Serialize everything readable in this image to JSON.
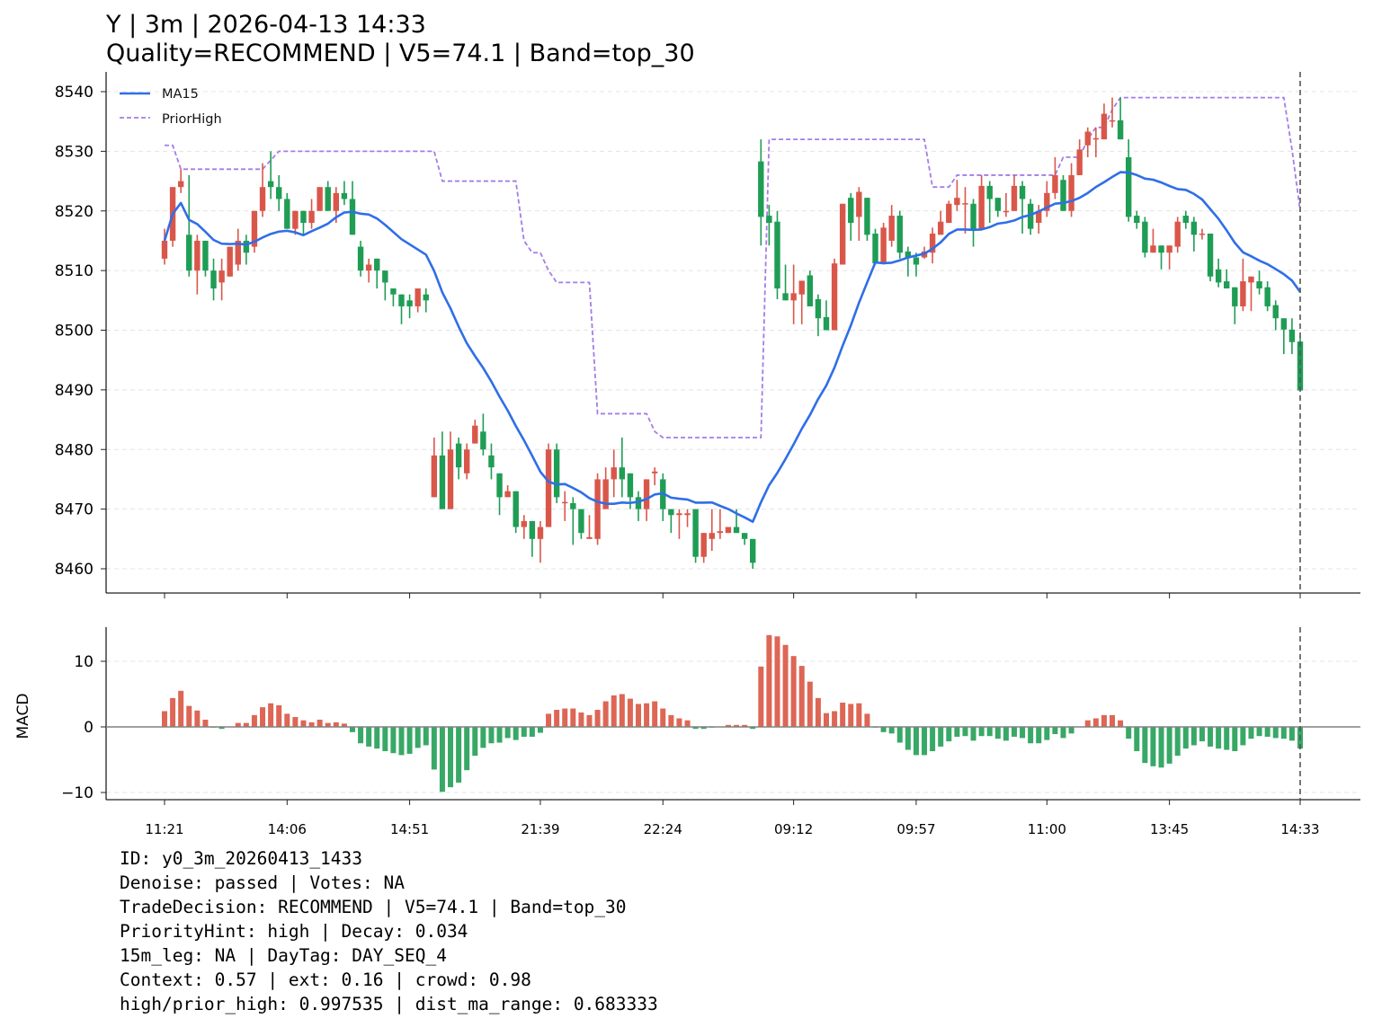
{
  "title": {
    "line1": "Y | 3m | 2026-04-13 14:33",
    "line2": "Quality=RECOMMEND | V5=74.1 | Band=top_30"
  },
  "info_lines": [
    "ID: y0_3m_20260413_1433",
    "Denoise: passed | Votes: NA",
    "TradeDecision: RECOMMEND | V5=74.1 | Band=top_30",
    "PriorityHint: high | Decay: 0.034",
    "15m_leg: NA | DayTag: DAY_SEQ_4",
    "Context: 0.57 | ext: 0.16 | crowd: 0.98",
    "high/prior_high: 0.997535 | dist_ma_range: 0.683333"
  ],
  "colors": {
    "up": "#d9574a",
    "down": "#1f9d55",
    "macd_up": "#dd6655",
    "macd_down": "#38a866",
    "ma": "#2f6ee8",
    "prior_high": "#a57ce8"
  },
  "chart_data": [
    {
      "type": "candlestick",
      "legend": [
        "MA15",
        "PriorHigh"
      ],
      "legend_position": "top-left",
      "ma_window": 15,
      "ylim": [
        8456,
        8544
      ],
      "yticks": [
        "8460",
        "8470",
        "8480",
        "8490",
        "8500",
        "8510",
        "8520",
        "8530",
        "8540"
      ],
      "xticks": [
        {
          "index": 0,
          "label": "11:21"
        },
        {
          "index": 15,
          "label": "14:06"
        },
        {
          "index": 30,
          "label": "14:51"
        },
        {
          "index": 46,
          "label": "21:39"
        },
        {
          "index": 61,
          "label": "22:24"
        },
        {
          "index": 77,
          "label": "09:12"
        },
        {
          "index": 92,
          "label": "09:57"
        },
        {
          "index": 108,
          "label": "11:00"
        },
        {
          "index": 123,
          "label": "13:45"
        },
        {
          "index": 139,
          "label": "14:33"
        }
      ],
      "marker_index": 139,
      "ohlc": [
        [
          8512,
          8517,
          8511,
          8515
        ],
        [
          8515,
          8524,
          8514,
          8524
        ],
        [
          8524,
          8527,
          8523,
          8525
        ],
        [
          8516,
          8526,
          8509,
          8510
        ],
        [
          8510,
          8516,
          8506,
          8515
        ],
        [
          8515,
          8515,
          8509,
          8510
        ],
        [
          8510,
          8512,
          8505,
          8507
        ],
        [
          8508,
          8512,
          8505,
          8510
        ],
        [
          8509,
          8514,
          8509,
          8514
        ],
        [
          8511,
          8517,
          8510,
          8515
        ],
        [
          8515,
          8516,
          8511,
          8513
        ],
        [
          8514,
          8520,
          8513,
          8520
        ],
        [
          8520,
          8528,
          8519,
          8524
        ],
        [
          8525,
          8530,
          8522,
          8524
        ],
        [
          8524,
          8526,
          8520,
          8522
        ],
        [
          8522,
          8523,
          8517,
          8517
        ],
        [
          8517,
          8520,
          8516,
          8520
        ],
        [
          8520,
          8520,
          8516,
          8518
        ],
        [
          8518,
          8522,
          8517,
          8520
        ],
        [
          8520,
          8524,
          8520,
          8524
        ],
        [
          8524,
          8525,
          8520,
          8520
        ],
        [
          8520,
          8524,
          8518,
          8523
        ],
        [
          8523,
          8525,
          8521,
          8522
        ],
        [
          8522,
          8525,
          8516,
          8516
        ],
        [
          8514,
          8515,
          8509,
          8510
        ],
        [
          8510,
          8512,
          8508,
          8511
        ],
        [
          8512,
          8512,
          8507,
          8510
        ],
        [
          8510,
          8510,
          8505,
          8508
        ],
        [
          8507,
          8507,
          8504,
          8506
        ],
        [
          8506,
          8506,
          8501,
          8504
        ],
        [
          8505,
          8506,
          8502,
          8504
        ],
        [
          8504,
          8507,
          8503,
          8507
        ],
        [
          8506,
          8507,
          8503,
          8505
        ],
        [
          8472,
          8482,
          8472,
          8479
        ],
        [
          8479,
          8483,
          8470,
          8470
        ],
        [
          8470,
          8483,
          8470,
          8480
        ],
        [
          8481,
          8482,
          8475,
          8477
        ],
        [
          8476,
          8481,
          8475,
          8480
        ],
        [
          8481,
          8485,
          8481,
          8484
        ],
        [
          8483,
          8486,
          8479,
          8480
        ],
        [
          8479,
          8481,
          8475,
          8477
        ],
        [
          8476,
          8476,
          8469,
          8472
        ],
        [
          8472,
          8474,
          8472,
          8473
        ],
        [
          8473,
          8473,
          8466,
          8467
        ],
        [
          8467,
          8469,
          8465,
          8468
        ],
        [
          8468,
          8468,
          8462,
          8465
        ],
        [
          8465,
          8468,
          8461,
          8467
        ],
        [
          8467,
          8481,
          8467,
          8480
        ],
        [
          8480,
          8481,
          8471,
          8472
        ],
        [
          8471,
          8473,
          8468,
          8471.2
        ],
        [
          8471,
          8472,
          8464,
          8470
        ],
        [
          8470,
          8470,
          8465,
          8466
        ],
        [
          8465,
          8469,
          8465,
          8465.3
        ],
        [
          8465,
          8476,
          8464,
          8475
        ],
        [
          8470,
          8477,
          8470,
          8475
        ],
        [
          8475,
          8480,
          8472,
          8477
        ],
        [
          8477,
          8482,
          8472,
          8475
        ],
        [
          8476,
          8476,
          8470,
          8472
        ],
        [
          8472,
          8473,
          8468,
          8470
        ],
        [
          8470,
          8475,
          8468,
          8475
        ],
        [
          8476,
          8477,
          8474,
          8476.3
        ],
        [
          8475,
          8476,
          8468,
          8470
        ],
        [
          8470,
          8470,
          8466,
          8469
        ],
        [
          8469,
          8470,
          8465,
          8469.3
        ],
        [
          8469,
          8470,
          8467,
          8469.3
        ],
        [
          8470,
          8470,
          8461,
          8462
        ],
        [
          8462,
          8466,
          8461,
          8466
        ],
        [
          8465,
          8470,
          8463,
          8466
        ],
        [
          8466,
          8470,
          8465,
          8466.3
        ],
        [
          8466,
          8467,
          8466,
          8467
        ],
        [
          8467,
          8470,
          8466,
          8466
        ],
        [
          8466,
          8466,
          8464,
          8465
        ],
        [
          8465,
          8465,
          8460,
          8461
        ],
        [
          8528.3,
          8532,
          8514.2,
          8519
        ],
        [
          8519.2,
          8521,
          8514.2,
          8518
        ],
        [
          8518.2,
          8520,
          8505.2,
          8507
        ],
        [
          8506.2,
          8511,
          8505,
          8505
        ],
        [
          8505,
          8511,
          8501,
          8506.2
        ],
        [
          8506,
          8508.3,
          8501,
          8508.3
        ],
        [
          8509.2,
          8510,
          8504,
          8504
        ],
        [
          8505.2,
          8506,
          8499,
          8502
        ],
        [
          8502.2,
          8505,
          8500,
          8500
        ],
        [
          8500,
          8512,
          8500,
          8511.2
        ],
        [
          8511,
          8521.2,
          8511,
          8521.2
        ],
        [
          8522.2,
          8523,
          8515,
          8518
        ],
        [
          8519,
          8524,
          8515,
          8523.2
        ],
        [
          8522.2,
          8522.2,
          8515,
          8516
        ],
        [
          8516.2,
          8517,
          8511,
          8511.2
        ],
        [
          8511.2,
          8518,
          8511,
          8517.2
        ],
        [
          8515,
          8521,
          8514,
          8519.2
        ],
        [
          8519.2,
          8520,
          8512,
          8513
        ],
        [
          8513.2,
          8514,
          8509,
          8512.2
        ],
        [
          8512.2,
          8513,
          8509,
          8511
        ],
        [
          8512.2,
          8514,
          8512,
          8513.2
        ],
        [
          8513,
          8517.2,
          8511.2,
          8516.2
        ],
        [
          8516,
          8520,
          8516,
          8518.2
        ],
        [
          8518,
          8521.7,
          8518,
          8521.2
        ],
        [
          8521,
          8525.2,
          8520,
          8522.2
        ],
        [
          8521.1,
          8524,
          8516.2,
          8521.3
        ],
        [
          8521.2,
          8522,
          8514,
          8517
        ],
        [
          8517,
          8526,
          8517,
          8524.2
        ],
        [
          8524.2,
          8525,
          8518,
          8522
        ],
        [
          8522.2,
          8522.2,
          8519,
          8520
        ],
        [
          8519.8,
          8523,
          8519,
          8520
        ],
        [
          8520,
          8526,
          8520,
          8524.2
        ],
        [
          8524.2,
          8525,
          8516.2,
          8522
        ],
        [
          8521.2,
          8522,
          8516,
          8517
        ],
        [
          8518,
          8521,
          8516.2,
          8520
        ],
        [
          8520,
          8525,
          8519,
          8523
        ],
        [
          8523,
          8529,
          8522,
          8526
        ],
        [
          8525.2,
          8526,
          8520,
          8520
        ],
        [
          8520,
          8528,
          8519,
          8526
        ],
        [
          8526,
          8532,
          8526,
          8530.3
        ],
        [
          8531,
          8534,
          8529,
          8533.3
        ],
        [
          8532,
          8534,
          8529,
          8532.2
        ],
        [
          8532,
          8538,
          8532,
          8536.3
        ],
        [
          8535,
          8539,
          8534,
          8535.2
        ],
        [
          8535.2,
          8539,
          8532,
          8532
        ],
        [
          8529,
          8532,
          8518.2,
          8519
        ],
        [
          8519.2,
          8520,
          8517,
          8518
        ],
        [
          8518.2,
          8519,
          8512.2,
          8513
        ],
        [
          8513,
          8517,
          8513,
          8514.2
        ],
        [
          8514.2,
          8514.2,
          8510.2,
          8513
        ],
        [
          8513,
          8514.2,
          8510.2,
          8514.2
        ],
        [
          8514,
          8519,
          8513,
          8518.2
        ],
        [
          8519.2,
          8520,
          8517,
          8518
        ],
        [
          8518.2,
          8519,
          8513.2,
          8516
        ],
        [
          8516,
          8517,
          8515.2,
          8516.2
        ],
        [
          8516.2,
          8516.2,
          8508.2,
          8509
        ],
        [
          8510.2,
          8512,
          8507.2,
          8508
        ],
        [
          8508.2,
          8510.2,
          8507,
          8507
        ],
        [
          8507.2,
          8507.2,
          8501,
          8504
        ],
        [
          8504,
          8512,
          8503.2,
          8508.2
        ],
        [
          8508,
          8509,
          8503.2,
          8509
        ],
        [
          8508.2,
          8510,
          8506,
          8507
        ],
        [
          8507.2,
          8508.2,
          8503.2,
          8504
        ],
        [
          8504.2,
          8505,
          8500,
          8502
        ],
        [
          8502,
          8502,
          8496,
          8500.1
        ],
        [
          8500.1,
          8502,
          8496,
          8498
        ],
        [
          8498.1,
          8498.9,
          8489.9,
          8489.9
        ]
      ],
      "prior_high": [
        8531,
        8531,
        8527,
        8527,
        8527,
        8527,
        8527,
        8527,
        8527,
        8527,
        8527,
        8527,
        8527,
        8528.5,
        8530,
        8530,
        8530,
        8530,
        8530,
        8530,
        8530,
        8530,
        8530,
        8530,
        8530,
        8530,
        8530,
        8530,
        8530,
        8530,
        8530,
        8530,
        8530,
        8530,
        8525,
        8525,
        8525,
        8525,
        8525,
        8525,
        8525,
        8525,
        8525,
        8525,
        8515,
        8513,
        8513,
        8510,
        8508,
        8508,
        8508,
        8508,
        8508,
        8486,
        8486,
        8486,
        8486,
        8486,
        8486,
        8486,
        8483,
        8482,
        8482,
        8482,
        8482,
        8482,
        8482,
        8482,
        8482,
        8482,
        8482,
        8482,
        8482,
        8482,
        8532,
        8532,
        8532,
        8532,
        8532,
        8532,
        8532,
        8532,
        8532,
        8532,
        8532,
        8532,
        8532,
        8532,
        8532,
        8532,
        8532,
        8532,
        8532,
        8532,
        8524,
        8524,
        8524,
        8526,
        8526,
        8526,
        8526,
        8526,
        8526,
        8526,
        8526,
        8526,
        8526,
        8526,
        8526,
        8526,
        8529,
        8529,
        8529,
        8532,
        8534,
        8534,
        8537,
        8539,
        8539,
        8539,
        8539,
        8539,
        8539,
        8539,
        8539,
        8539,
        8539,
        8539,
        8539,
        8539,
        8539,
        8539,
        8539,
        8539,
        8539,
        8539,
        8539,
        8539,
        8530.3,
        8520
      ]
    },
    {
      "type": "bar",
      "ylabel": "MACD",
      "ylim": [
        -11,
        15
      ],
      "yticks": [
        {
          "value": -10,
          "label": "−10"
        },
        {
          "value": 0,
          "label": "0"
        },
        {
          "value": 10,
          "label": "10"
        }
      ],
      "values": [
        2.4,
        4.4,
        5.5,
        3.2,
        2.5,
        1.1,
        -0.1,
        -0.3,
        0.05,
        0.6,
        0.6,
        1.8,
        3.0,
        3.6,
        3.3,
        2.0,
        1.5,
        1.0,
        0.7,
        1.1,
        0.6,
        0.7,
        0.5,
        -0.8,
        -2.5,
        -3.0,
        -3.3,
        -3.7,
        -4.0,
        -4.3,
        -4.1,
        -3.2,
        -2.8,
        -6.5,
        -9.9,
        -9.2,
        -8.5,
        -6.6,
        -4.4,
        -3.2,
        -2.5,
        -2.4,
        -1.7,
        -2.0,
        -1.5,
        -1.5,
        -0.9,
        2.0,
        2.6,
        2.8,
        2.8,
        2.2,
        1.8,
        2.6,
        3.9,
        4.8,
        5.0,
        4.3,
        3.5,
        3.6,
        3.9,
        2.8,
        1.8,
        1.3,
        1.0,
        -0.3,
        -0.3,
        -0.1,
        0.05,
        0.3,
        0.3,
        0.3,
        -0.3,
        9.2,
        14.0,
        13.8,
        12.5,
        10.8,
        9.3,
        6.9,
        4.4,
        2.1,
        2.4,
        3.7,
        3.5,
        3.6,
        2.0,
        -0.05,
        -0.8,
        -1.0,
        -2.4,
        -3.5,
        -4.3,
        -4.3,
        -3.7,
        -3.0,
        -2.2,
        -1.5,
        -1.4,
        -2.1,
        -1.4,
        -1.4,
        -1.8,
        -2.1,
        -1.5,
        -1.7,
        -2.5,
        -2.5,
        -2.0,
        -1.1,
        -1.7,
        -1.0,
        0.05,
        1.0,
        1.3,
        1.8,
        1.8,
        1.0,
        -1.8,
        -3.7,
        -5.5,
        -6.0,
        -6.2,
        -5.6,
        -4.4,
        -3.3,
        -2.8,
        -2.2,
        -3.0,
        -3.3,
        -3.5,
        -3.7,
        -2.8,
        -1.8,
        -1.4,
        -1.5,
        -1.7,
        -1.8,
        -2.1,
        -3.3
      ]
    }
  ]
}
